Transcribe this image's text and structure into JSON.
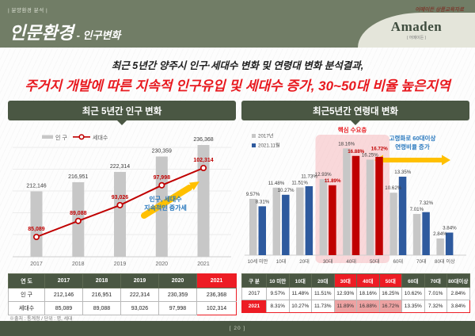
{
  "header": {
    "kicker": "| 분양환경 분석 |",
    "title": "인문환경",
    "subtitle": " - 인구변화",
    "note": "어메이든 상품교육자료",
    "logo": "Amaden",
    "logo_sub": "( 어메이든 )"
  },
  "headline": {
    "line1": "최근 5년간 양주시 인구·세대수 변화 및 연령대 변화 분석결과,",
    "line2": "주거지 개발에 따른 지속적 인구유입 및 세대수 증가, 30~50대 비율 높은지역"
  },
  "left_panel": {
    "title": "최근 5년간 인구 변화",
    "legend": {
      "population": "인 구",
      "households": "세대수"
    },
    "annotation_line1": "인구, 세대수",
    "annotation_line2": "지속적인 증가세",
    "table": {
      "headers": [
        "연 도",
        "2017",
        "2018",
        "2019",
        "2020",
        "2021"
      ],
      "rows": [
        [
          "인 구",
          "212,146",
          "216,951",
          "222,314",
          "230,359",
          "236,368"
        ],
        [
          "세대수",
          "85,089",
          "89,088",
          "93,026",
          "97,998",
          "102,314"
        ]
      ]
    },
    "source": "※출처 : 통계청 / 단위 : 명, 세대"
  },
  "right_panel": {
    "title": "최근5년간 연령대 변화",
    "legend_2017": "2017년",
    "legend_2021": "2021.11월",
    "core_label": "핵심 수요층",
    "aging_line1": "고령화로 60대이상",
    "aging_line2": "연령비율 증가",
    "table": {
      "headers": [
        "구 분",
        "10 미만",
        "10대",
        "20대",
        "30대",
        "40대",
        "50대",
        "60대",
        "70대",
        "80대이상"
      ],
      "rows": [
        [
          "2017",
          "9.57%",
          "11.48%",
          "11.51%",
          "12.93%",
          "18.16%",
          "16.25%",
          "10.62%",
          "7.01%",
          "2.84%"
        ],
        [
          "2021",
          "8.31%",
          "10.27%",
          "11.73%",
          "11.89%",
          "16.88%",
          "16.72%",
          "13.35%",
          "7.32%",
          "3.84%"
        ]
      ]
    }
  },
  "chart_data": [
    {
      "type": "bar",
      "title": "최근 5년간 인구 변화",
      "categories": [
        "2017",
        "2018",
        "2019",
        "2020",
        "2021"
      ],
      "series": [
        {
          "name": "인 구",
          "type": "bar",
          "values": [
            212146,
            216951,
            222314,
            230359,
            236368
          ]
        },
        {
          "name": "세대수",
          "type": "line",
          "values": [
            85089,
            89088,
            93026,
            97998,
            102314
          ]
        }
      ],
      "annotation": "인구, 세대수 지속적인 증가세",
      "legend_position": "top",
      "grid": true
    },
    {
      "type": "bar",
      "title": "최근5년간 연령대 변화",
      "categories": [
        "10세 미만",
        "10대",
        "20대",
        "30대",
        "40대",
        "50대",
        "60대",
        "70대",
        "80대 이상"
      ],
      "series": [
        {
          "name": "2017년",
          "values": [
            9.57,
            11.48,
            11.51,
            12.93,
            18.16,
            16.25,
            10.62,
            7.01,
            2.84
          ]
        },
        {
          "name": "2021.11월",
          "values": [
            8.31,
            10.27,
            11.73,
            11.89,
            16.88,
            16.72,
            13.35,
            7.32,
            3.84
          ]
        }
      ],
      "unit": "%",
      "highlighted_categories": [
        "30대",
        "40대",
        "50대"
      ],
      "annotations": [
        "핵심 수요층",
        "고령화로 60대이상 연령비율 증가"
      ],
      "legend_position": "top-left",
      "grid": false
    }
  ],
  "footer": {
    "page": "[ 20 ]"
  },
  "colors": {
    "header_bg": "#717d66",
    "panel_green": "#4a5743",
    "accent_red": "#ed1c24",
    "line_red": "#c00000",
    "bar_gray": "#c7c7c7",
    "bar_navy": "#2e5a9e",
    "note_blue": "#2878be",
    "arrow_yellow": "#ffc000",
    "logo_cream": "#e4e5da",
    "highlight_pink": "#f5b3b8"
  }
}
